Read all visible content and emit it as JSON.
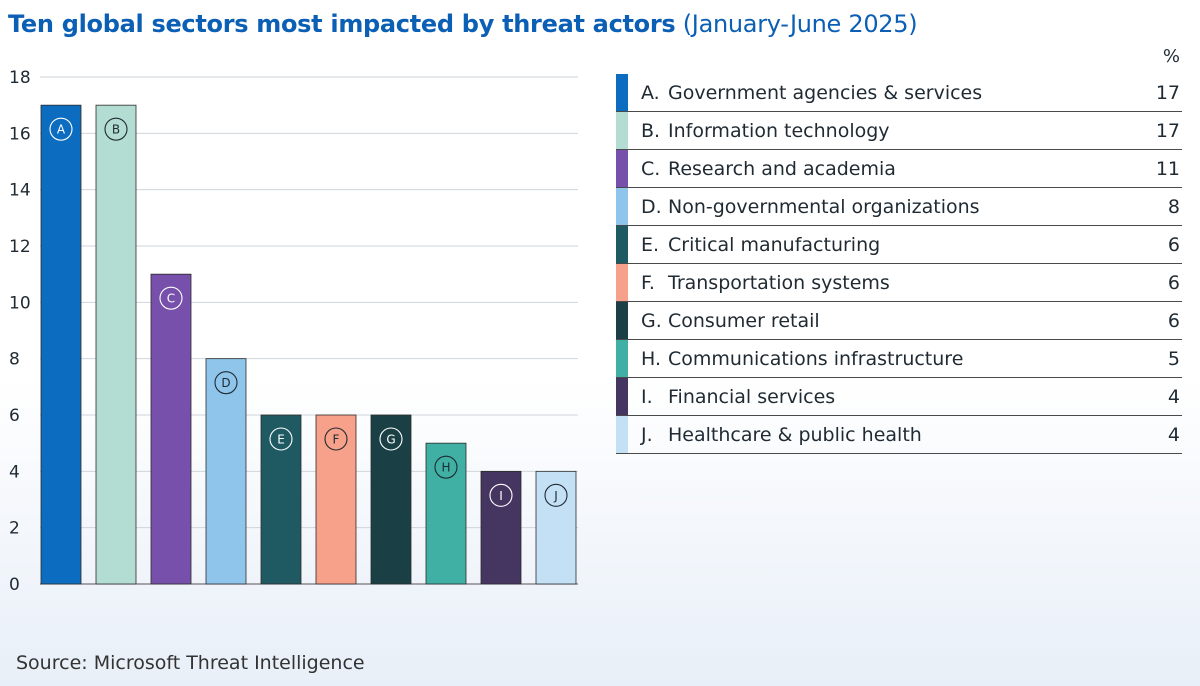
{
  "title": {
    "main": "Ten global sectors most impacted by threat actors",
    "sub": "(January-June 2025)"
  },
  "legend_header": "%",
  "source": "Source: Microsoft Threat Intelligence",
  "chart_data": {
    "type": "bar",
    "title": "Ten global sectors most impacted by threat actors (January-June 2025)",
    "xlabel": "",
    "ylabel": "%",
    "ylim": [
      0,
      18
    ],
    "yticks": [
      "0",
      "2",
      "4",
      "6",
      "8",
      "10",
      "12",
      "14",
      "16",
      "18"
    ],
    "grid": true,
    "legend_position": "right",
    "categories": [
      "A",
      "B",
      "C",
      "D",
      "E",
      "F",
      "G",
      "H",
      "I",
      "J"
    ],
    "labels": [
      "Government agencies & services",
      "Information technology",
      "Research and academia",
      "Non-governmental organizations",
      "Critical manufacturing",
      "Transportation systems",
      "Consumer retail",
      "Communications infrastructure",
      "Financial services",
      "Healthcare & public health"
    ],
    "values": [
      17,
      17,
      11,
      8,
      6,
      6,
      6,
      5,
      4,
      4
    ],
    "colors": [
      "#0c6cbf",
      "#b3dcd3",
      "#7650aa",
      "#8fc5ea",
      "#1f5a63",
      "#f7a08a",
      "#1a4045",
      "#3fb0a3",
      "#453561",
      "#c4e0f5"
    ],
    "circle_styles": [
      "light",
      "dark",
      "light",
      "dark",
      "light",
      "dark",
      "light",
      "dark",
      "light",
      "dark"
    ]
  }
}
